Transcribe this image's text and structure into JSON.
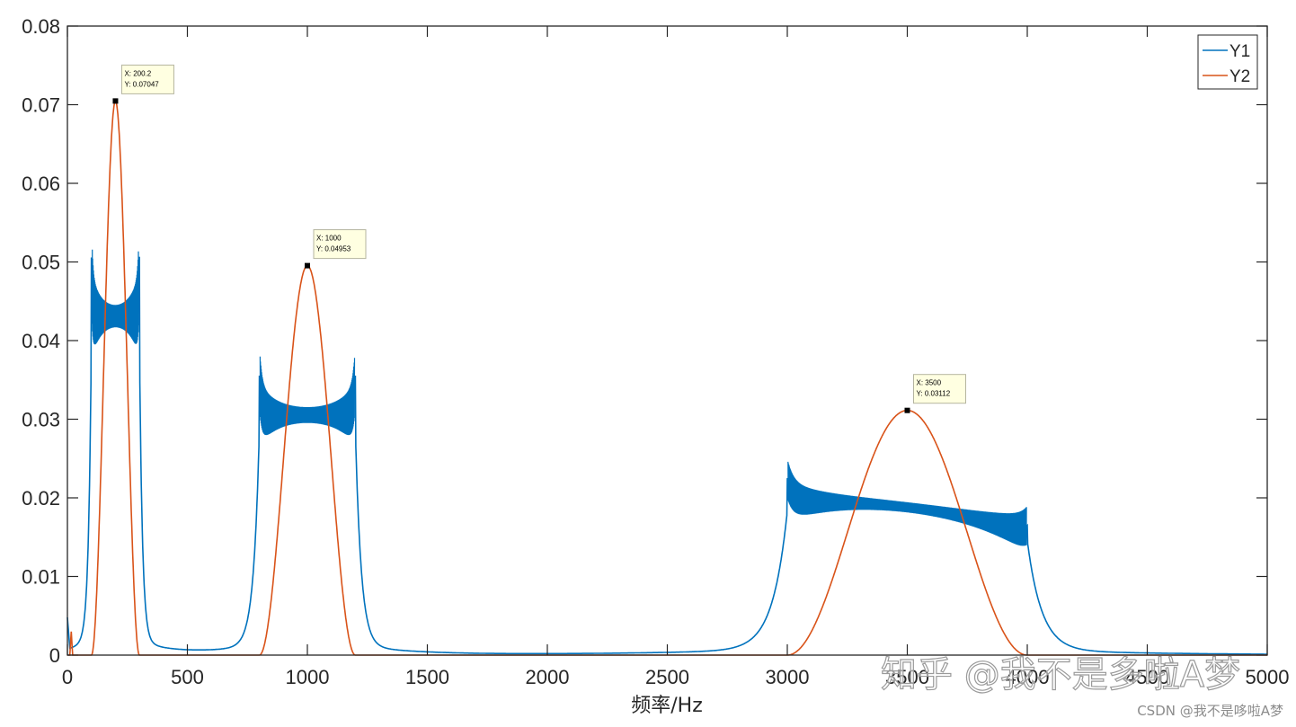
{
  "chart_data": {
    "type": "line",
    "title": "",
    "xlabel": "频率/Hz",
    "ylabel": "",
    "xlim": [
      0,
      5000
    ],
    "ylim": [
      0,
      0.08
    ],
    "x_ticks": [
      0,
      500,
      1000,
      1500,
      2000,
      2500,
      3000,
      3500,
      4000,
      4500,
      5000
    ],
    "y_ticks": [
      0,
      0.01,
      0.02,
      0.03,
      0.04,
      0.05,
      0.06,
      0.07,
      0.08
    ],
    "x_tick_labels": [
      "0",
      "500",
      "1000",
      "1500",
      "2000",
      "2500",
      "3000",
      "3500",
      "4000",
      "4500",
      "5000"
    ],
    "y_tick_labels": [
      "0",
      "0.01",
      "0.02",
      "0.03",
      "0.04",
      "0.05",
      "0.06",
      "0.07",
      "0.08"
    ],
    "grid": false,
    "legend_position": "upper right",
    "series": [
      {
        "name": "Y1",
        "color": "#0072BD",
        "description": "Three flat-topped bands with edge overshoots (Gibbs ripple)",
        "bands": [
          {
            "x_start": 100,
            "x_end": 300,
            "level": 0.043,
            "edge_peak": 0.0505
          },
          {
            "x_start": 800,
            "x_end": 1200,
            "level": 0.0305,
            "edge_peak": 0.0355
          },
          {
            "x_start": 3000,
            "x_end": 4000,
            "level_start": 0.0195,
            "level_end": 0.0155,
            "edge_peak_left": 0.0225,
            "edge_peak_right": 0.0165
          }
        ],
        "points": [
          [
            0,
            0.004
          ],
          [
            20,
            0.0005
          ],
          [
            60,
            0.001
          ],
          [
            100,
            0.01
          ],
          [
            110,
            0.0505
          ],
          [
            130,
            0.044
          ],
          [
            200,
            0.043
          ],
          [
            270,
            0.044
          ],
          [
            290,
            0.0508
          ],
          [
            300,
            0.01
          ],
          [
            350,
            0.002
          ],
          [
            500,
            0.0005
          ],
          [
            700,
            0.001
          ],
          [
            780,
            0.004
          ],
          [
            810,
            0.0355
          ],
          [
            850,
            0.031
          ],
          [
            1000,
            0.0305
          ],
          [
            1150,
            0.031
          ],
          [
            1190,
            0.0355
          ],
          [
            1220,
            0.004
          ],
          [
            1350,
            0.0008
          ],
          [
            1500,
            0.0003
          ],
          [
            2500,
            0.0002
          ],
          [
            2900,
            0.0008
          ],
          [
            2980,
            0.004
          ],
          [
            3025,
            0.0225
          ],
          [
            3100,
            0.0195
          ],
          [
            3500,
            0.019
          ],
          [
            3800,
            0.018
          ],
          [
            3950,
            0.0155
          ],
          [
            3980,
            0.0165
          ],
          [
            4020,
            0.003
          ],
          [
            4200,
            0.0005
          ],
          [
            5000,
            0
          ]
        ]
      },
      {
        "name": "Y2",
        "color": "#D95319",
        "description": "Three smooth bell-shaped lobes",
        "lobes": [
          {
            "center": 200.2,
            "peak": 0.07047,
            "half_width": 100
          },
          {
            "center": 1000,
            "peak": 0.04953,
            "half_width": 200
          },
          {
            "center": 3500,
            "peak": 0.03112,
            "half_width": 500
          }
        ],
        "points": [
          [
            0,
            0
          ],
          [
            15,
            0.003
          ],
          [
            20,
            0
          ],
          [
            100,
            0
          ],
          [
            150,
            0.035
          ],
          [
            200.2,
            0.07047
          ],
          [
            250,
            0.035
          ],
          [
            300,
            0
          ],
          [
            800,
            0
          ],
          [
            900,
            0.025
          ],
          [
            1000,
            0.04953
          ],
          [
            1100,
            0.025
          ],
          [
            1200,
            0
          ],
          [
            3000,
            0
          ],
          [
            3250,
            0.0155
          ],
          [
            3500,
            0.03112
          ],
          [
            3750,
            0.0155
          ],
          [
            4000,
            0
          ],
          [
            5000,
            0
          ]
        ]
      }
    ],
    "annotations": [
      {
        "type": "datatip",
        "series": "Y2",
        "x": 200.2,
        "y": 0.07047,
        "label_x": "X: 200.2",
        "label_y": "Y: 0.07047"
      },
      {
        "type": "datatip",
        "series": "Y2",
        "x": 1000,
        "y": 0.04953,
        "label_x": "X: 1000",
        "label_y": "Y: 0.04953"
      },
      {
        "type": "datatip",
        "series": "Y2",
        "x": 3500,
        "y": 0.03112,
        "label_x": "X: 3500",
        "label_y": "Y: 0.03112"
      }
    ]
  },
  "legend": {
    "items": [
      {
        "label": "Y1",
        "color": "#0072BD"
      },
      {
        "label": "Y2",
        "color": "#D95319"
      }
    ]
  },
  "watermark": {
    "text": "知乎 @我不是多啦A梦"
  },
  "credit": {
    "text": "CSDN @我不是哆啦A梦"
  }
}
